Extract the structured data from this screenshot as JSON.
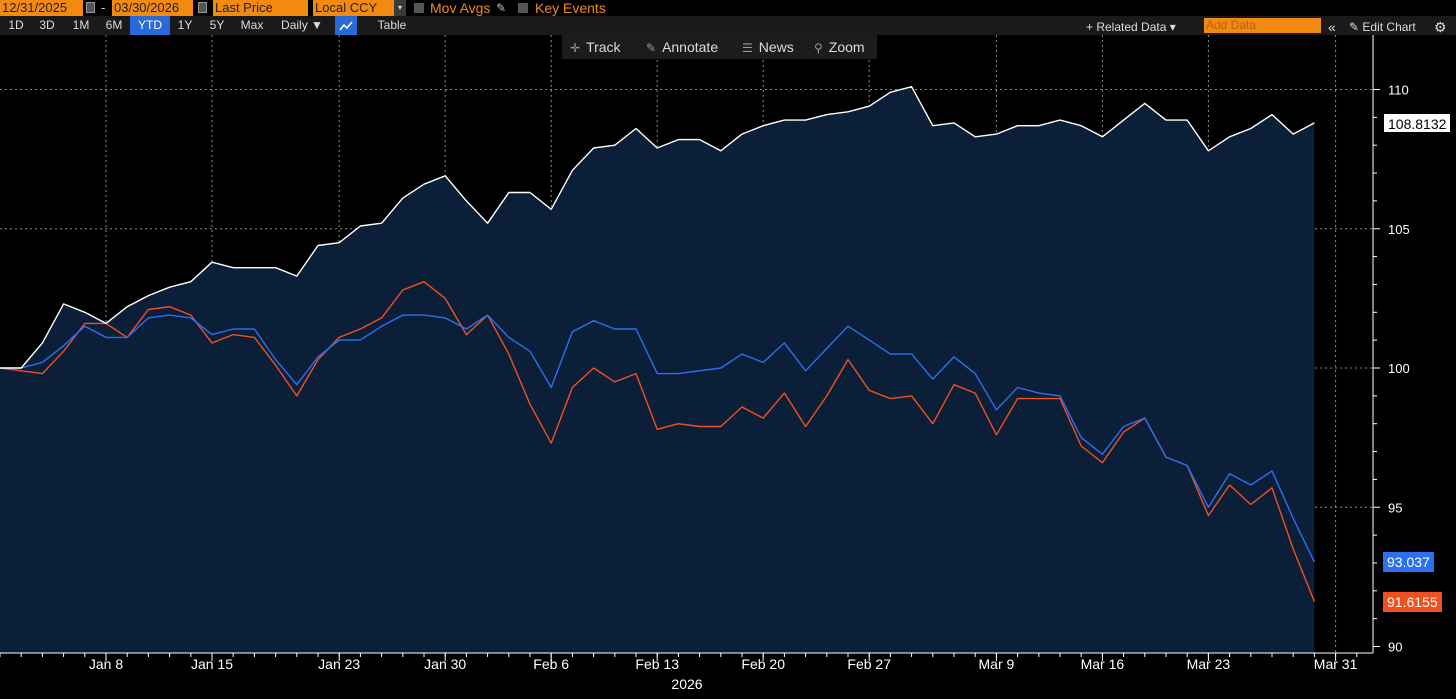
{
  "header": {
    "start_date": "12/31/2025",
    "date_separator": "-",
    "end_date": "03/30/2026",
    "price_field": "Last Price",
    "currency_field": "Local CCY",
    "mov_avgs_label": "Mov Avgs",
    "key_events_label": "Key Events"
  },
  "ranges": [
    "1D",
    "3D",
    "1M",
    "6M",
    "YTD",
    "1Y",
    "5Y",
    "Max"
  ],
  "active_range": "YTD",
  "frequency": "Daily ▼",
  "table_label": "Table",
  "related_data_label": "+ Related Data ▾",
  "add_data_placeholder": "Add Data",
  "collapse_label": "«",
  "edit_chart_label": "✎ Edit Chart",
  "tools": {
    "track": "Track",
    "annotate": "Annotate",
    "news": "News",
    "zoom": "Zoom"
  },
  "icons": {
    "track": "crosshair-icon",
    "annotate": "pencil-icon",
    "news": "news-icon",
    "zoom": "magnifier-icon",
    "settings": "gear-icon",
    "calendar": "calendar-icon",
    "chart_type": "line-chart-icon"
  },
  "colors": {
    "background": "#000000",
    "area_fill": "#0b1f38",
    "white_series": "#ffffff",
    "blue_series": "#2b6ff2",
    "orange_series": "#f2501f",
    "accent": "#f28a12",
    "active_range": "#2a6ad8"
  },
  "chart_data": {
    "type": "line",
    "ylim": [
      90,
      110.6
    ],
    "yticks": [
      90,
      95,
      100,
      105,
      110
    ],
    "x_tick_labels": [
      "Jan 8",
      "Jan 15",
      "Jan 23",
      "Jan 30",
      "Feb 6",
      "Feb 13",
      "Feb 20",
      "Feb 27",
      "Mar 9",
      "Mar 16",
      "Mar 23",
      "Mar 31"
    ],
    "x_tick_index": [
      5,
      10,
      16,
      21,
      26,
      31,
      36,
      41,
      47,
      52,
      57,
      63
    ],
    "year_label": "2026",
    "area_fill_series": 0,
    "series": [
      {
        "color": "#ffffff",
        "last_value": "108.8132",
        "values": [
          100,
          100,
          100.9,
          102.3,
          102.0,
          101.6,
          102.2,
          102.6,
          102.9,
          103.1,
          103.8,
          103.6,
          103.6,
          103.6,
          103.3,
          104.4,
          104.5,
          105.1,
          105.2,
          106.1,
          106.6,
          106.9,
          106.0,
          105.2,
          106.3,
          106.3,
          105.7,
          107.1,
          107.9,
          108.0,
          108.6,
          107.9,
          108.2,
          108.2,
          107.8,
          108.4,
          108.7,
          108.9,
          108.9,
          109.1,
          109.2,
          109.4,
          109.9,
          110.1,
          108.7,
          108.8,
          108.3,
          108.4,
          108.7,
          108.7,
          108.9,
          108.7,
          108.3,
          108.9,
          109.5,
          108.9,
          108.9,
          107.8,
          108.3,
          108.6,
          109.1,
          108.4,
          108.8
        ]
      },
      {
        "color": "#2b6ff2",
        "last_value": "93.037",
        "values": [
          100,
          100,
          100.2,
          100.8,
          101.5,
          101.1,
          101.1,
          101.8,
          101.9,
          101.8,
          101.2,
          101.4,
          101.4,
          100.3,
          99.4,
          100.4,
          101.0,
          101.0,
          101.5,
          101.9,
          101.9,
          101.8,
          101.4,
          101.9,
          101.1,
          100.6,
          99.3,
          101.3,
          101.7,
          101.4,
          101.4,
          99.8,
          99.8,
          99.9,
          100.0,
          100.5,
          100.2,
          100.9,
          99.9,
          100.7,
          101.5,
          101.0,
          100.5,
          100.5,
          99.6,
          100.4,
          99.8,
          98.5,
          99.3,
          99.1,
          99.0,
          97.5,
          96.9,
          97.9,
          98.2,
          96.8,
          96.5,
          95.0,
          96.2,
          95.8,
          96.3,
          94.6,
          93.037
        ]
      },
      {
        "color": "#f2501f",
        "last_value": "91.6155",
        "values": [
          100,
          99.9,
          99.8,
          100.6,
          101.6,
          101.6,
          101.1,
          102.1,
          102.2,
          101.9,
          100.9,
          101.2,
          101.1,
          100.1,
          99.0,
          100.3,
          101.1,
          101.4,
          101.8,
          102.8,
          103.1,
          102.5,
          101.2,
          101.9,
          100.5,
          98.7,
          97.3,
          99.3,
          100.0,
          99.5,
          99.8,
          97.8,
          98.0,
          97.9,
          97.9,
          98.6,
          98.2,
          99.1,
          97.9,
          99.0,
          100.3,
          99.2,
          98.9,
          99.0,
          98.0,
          99.4,
          99.1,
          97.6,
          98.9,
          98.9,
          98.9,
          97.2,
          96.6,
          97.7,
          98.2,
          96.8,
          96.5,
          94.7,
          95.8,
          95.1,
          95.7,
          93.5,
          91.6155
        ]
      }
    ]
  }
}
